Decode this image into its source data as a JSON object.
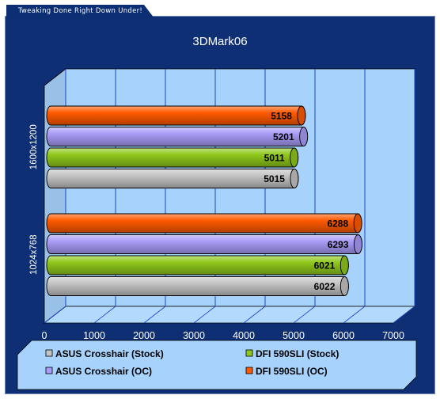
{
  "header": {
    "banner_text": "Tweaking Done Right Down Under!"
  },
  "colors": {
    "background": "#0e2f73",
    "plot_area": "#a6d2fb",
    "gridline": "#1a45c8",
    "legend_bg": "#a6d2fb"
  },
  "chart_data": {
    "type": "bar",
    "orientation": "horizontal",
    "style": "3d-cylinder",
    "title": "3DMark06",
    "xlabel": "",
    "ylabel": "",
    "xlim": [
      0,
      7000
    ],
    "xticks": [
      0,
      1000,
      2000,
      3000,
      4000,
      5000,
      6000,
      7000
    ],
    "grid": true,
    "legend_position": "bottom",
    "categories": [
      "1600x1200",
      "1024x768"
    ],
    "series": [
      {
        "name": "DFI 590SLI (OC)",
        "color": "#ff5a00",
        "values": [
          5158,
          6288
        ]
      },
      {
        "name": "ASUS Crosshair (OC)",
        "color": "#a99cf8",
        "values": [
          5201,
          6293
        ]
      },
      {
        "name": "DFI 590SLI (Stock)",
        "color": "#8fc81c",
        "values": [
          5011,
          6021
        ]
      },
      {
        "name": "ASUS Crosshair (Stock)",
        "color": "#c4c4c4",
        "values": [
          5015,
          6022
        ]
      }
    ],
    "legend": [
      {
        "name": "ASUS Crosshair (Stock)",
        "color": "#c4c4c4"
      },
      {
        "name": "DFI 590SLI (Stock)",
        "color": "#8fc81c"
      },
      {
        "name": "ASUS Crosshair (OC)",
        "color": "#a99cf8"
      },
      {
        "name": "DFI 590SLI (OC)",
        "color": "#ff5a00"
      }
    ]
  }
}
